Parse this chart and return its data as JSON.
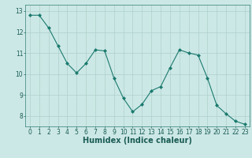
{
  "x": [
    0,
    1,
    2,
    3,
    4,
    5,
    6,
    7,
    8,
    9,
    10,
    11,
    12,
    13,
    14,
    15,
    16,
    17,
    18,
    19,
    20,
    21,
    22,
    23
  ],
  "y": [
    12.8,
    12.8,
    12.2,
    11.35,
    10.5,
    10.05,
    10.5,
    11.15,
    11.1,
    9.8,
    8.85,
    8.2,
    8.55,
    9.2,
    9.4,
    10.3,
    11.15,
    11.0,
    10.9,
    9.8,
    8.5,
    8.1,
    7.75,
    7.6
  ],
  "line_color": "#1a7a6e",
  "marker": "D",
  "marker_size": 2.0,
  "bg_color": "#cce8e6",
  "grid_color": "#aed0cc",
  "axis_color": "#2e7d72",
  "xlabel": "Humidex (Indice chaleur)",
  "ylim": [
    7.5,
    13.3
  ],
  "xlim": [
    -0.5,
    23.5
  ],
  "yticks": [
    8,
    9,
    10,
    11,
    12,
    13
  ],
  "xticks": [
    0,
    1,
    2,
    3,
    4,
    5,
    6,
    7,
    8,
    9,
    10,
    11,
    12,
    13,
    14,
    15,
    16,
    17,
    18,
    19,
    20,
    21,
    22,
    23
  ],
  "font_color": "#1a5c54",
  "label_fontsize": 6.5,
  "tick_fontsize": 5.5,
  "xlabel_fontsize": 7.0
}
